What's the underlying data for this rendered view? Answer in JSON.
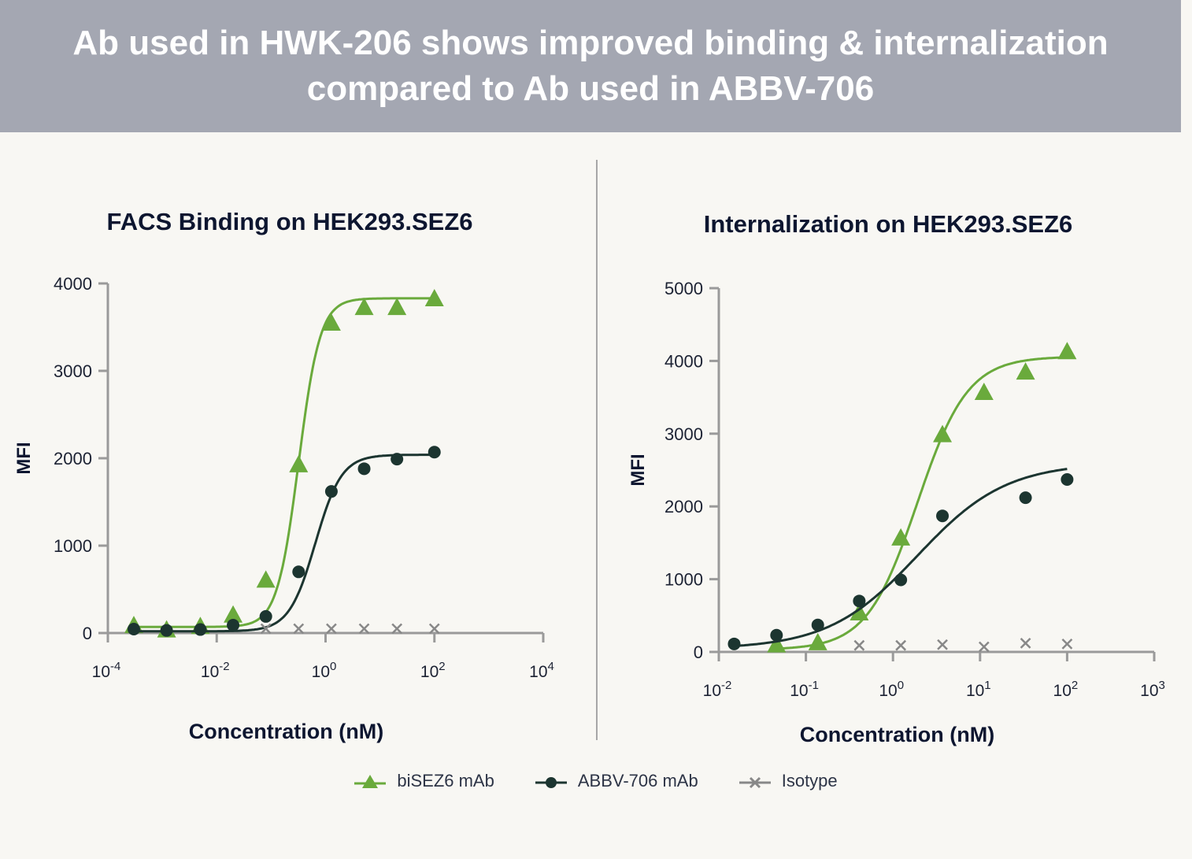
{
  "header": {
    "title_line1": "Ab used in HWK-206 shows improved binding & internalization",
    "title_line2": "compared to Ab used in ABBV-706"
  },
  "colors": {
    "biSEZ6": "#6aaa3c",
    "ABBV706": "#1c3530",
    "isotype": "#888888",
    "axis": "#9a9a9a",
    "title_text": "#0d1630"
  },
  "legend": [
    {
      "label": "biSEZ6 mAb",
      "marker": "triangle",
      "color": "#6aaa3c"
    },
    {
      "label": "ABBV-706 mAb",
      "marker": "circle",
      "color": "#1c3530"
    },
    {
      "label": "Isotype",
      "marker": "cross",
      "color": "#888888"
    }
  ],
  "chart_data": [
    {
      "type": "scatter",
      "title": "FACS Binding on HEK293.SEZ6",
      "xlabel": "Concentration (nM)",
      "ylabel": "MFI",
      "x_scale": "log",
      "xlim": [
        0.0001,
        10000
      ],
      "ylim": [
        0,
        4000
      ],
      "x_ticks": [
        {
          "value": 0.0001,
          "base": "10",
          "exp": "-4"
        },
        {
          "value": 0.01,
          "base": "10",
          "exp": "-2"
        },
        {
          "value": 1,
          "base": "10",
          "exp": "0"
        },
        {
          "value": 100,
          "base": "10",
          "exp": "2"
        },
        {
          "value": 10000,
          "base": "10",
          "exp": "4"
        }
      ],
      "y_ticks": [
        0,
        1000,
        2000,
        3000,
        4000
      ],
      "series": [
        {
          "name": "biSEZ6 mAb",
          "marker": "triangle",
          "x": [
            0.0003,
            0.0012,
            0.005,
            0.02,
            0.08,
            0.32,
            1.28,
            5.12,
            20.5,
            100
          ],
          "y": [
            80,
            30,
            70,
            200,
            600,
            1920,
            3540,
            3720,
            3720,
            3820
          ],
          "fit": {
            "bottom": 70,
            "top": 3830,
            "ec50": 0.32,
            "hill": 2.2
          }
        },
        {
          "name": "ABBV-706 mAb",
          "marker": "circle",
          "x": [
            0.0003,
            0.0012,
            0.005,
            0.02,
            0.08,
            0.32,
            1.28,
            5.12,
            20.5,
            100
          ],
          "y": [
            45,
            30,
            40,
            90,
            190,
            700,
            1620,
            1880,
            1990,
            2070
          ],
          "fit": {
            "bottom": 20,
            "top": 2040,
            "ec50": 0.65,
            "hill": 1.8
          }
        },
        {
          "name": "Isotype",
          "marker": "cross",
          "x": [
            0.08,
            0.32,
            1.28,
            5.12,
            20.5,
            100
          ],
          "y": [
            50,
            50,
            50,
            50,
            50,
            50
          ]
        }
      ]
    },
    {
      "type": "scatter",
      "title": "Internalization on HEK293.SEZ6",
      "xlabel": "Concentration (nM)",
      "ylabel": "MFI",
      "x_scale": "log",
      "xlim": [
        0.01,
        1000
      ],
      "ylim": [
        0,
        5000
      ],
      "x_ticks": [
        {
          "value": 0.01,
          "base": "10",
          "exp": "-2"
        },
        {
          "value": 0.1,
          "base": "10",
          "exp": "-1"
        },
        {
          "value": 1,
          "base": "10",
          "exp": "0"
        },
        {
          "value": 10,
          "base": "10",
          "exp": "1"
        },
        {
          "value": 100,
          "base": "10",
          "exp": "2"
        },
        {
          "value": 1000,
          "base": "10",
          "exp": "3"
        }
      ],
      "y_ticks": [
        0,
        1000,
        2000,
        3000,
        4000,
        5000
      ],
      "series": [
        {
          "name": "biSEZ6 mAb",
          "marker": "triangle",
          "x": [
            0.046,
            0.137,
            0.41,
            1.23,
            3.7,
            11.1,
            33.3,
            100
          ],
          "y": [
            90,
            120,
            530,
            1560,
            2980,
            3560,
            3840,
            4120
          ],
          "fit": {
            "bottom": 30,
            "top": 4060,
            "ec50": 1.9,
            "hill": 1.5
          }
        },
        {
          "name": "ABBV-706 mAb",
          "marker": "circle",
          "x": [
            0.015,
            0.046,
            0.137,
            0.41,
            1.23,
            3.7,
            33.3,
            100
          ],
          "y": [
            110,
            230,
            370,
            700,
            990,
            1870,
            2120,
            2370
          ],
          "fit": {
            "bottom": 40,
            "top": 2600,
            "ec50": 1.9,
            "hill": 0.85
          }
        },
        {
          "name": "Isotype",
          "marker": "cross",
          "x": [
            0.41,
            1.23,
            3.7,
            11.1,
            33.3,
            100
          ],
          "y": [
            90,
            90,
            100,
            70,
            120,
            110
          ]
        }
      ]
    }
  ]
}
